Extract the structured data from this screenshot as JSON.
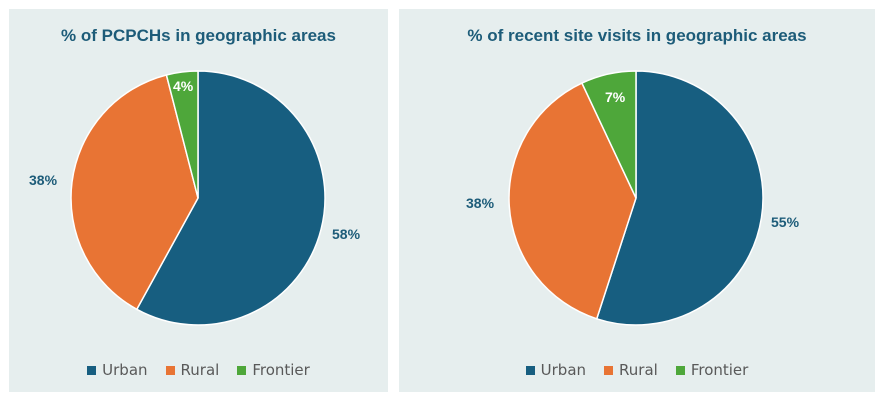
{
  "colors": {
    "urban": "#175e80",
    "rural": "#e87434",
    "frontier": "#4ea73a",
    "panel_bg": "#e6eeee",
    "text": "#1d5c79"
  },
  "chart_data": [
    {
      "type": "pie",
      "title": "% of PCPCHs in geographic areas",
      "categories": [
        "Urban",
        "Rural",
        "Frontier"
      ],
      "values": [
        58,
        38,
        4
      ],
      "labels": [
        "58%",
        "38%",
        "4%"
      ],
      "legend_position": "bottom"
    },
    {
      "type": "pie",
      "title": "% of recent site visits in geographic areas",
      "categories": [
        "Urban",
        "Rural",
        "Frontier"
      ],
      "values": [
        55,
        38,
        7
      ],
      "labels": [
        "55%",
        "38%",
        "7%"
      ],
      "legend_position": "bottom"
    }
  ],
  "legend": [
    "Urban",
    "Rural",
    "Frontier"
  ]
}
